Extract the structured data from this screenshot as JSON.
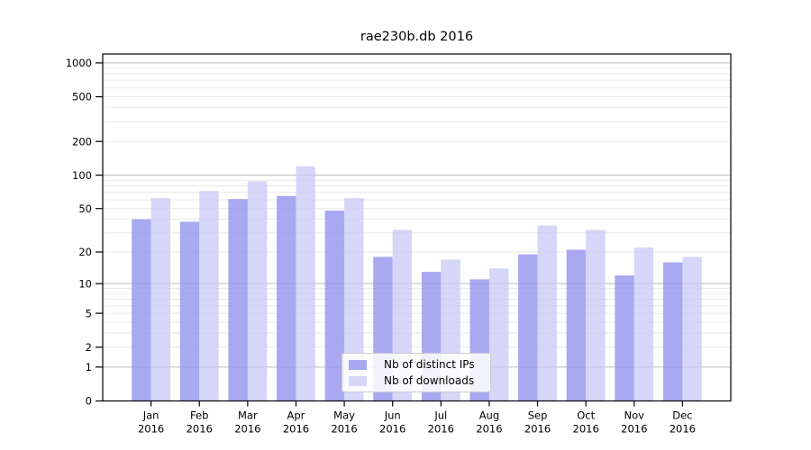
{
  "chart_data": {
    "type": "bar",
    "title": "rae230b.db 2016",
    "categories": [
      "Jan",
      "Feb",
      "Mar",
      "Apr",
      "May",
      "Jun",
      "Jul",
      "Aug",
      "Sep",
      "Oct",
      "Nov",
      "Dec"
    ],
    "category_year": "2016",
    "series": [
      {
        "name": "Nb of distinct IPs",
        "color": "#9494EECC",
        "values": [
          40,
          38,
          61,
          65,
          48,
          18,
          13,
          11,
          19,
          21,
          12,
          16
        ]
      },
      {
        "name": "Nb of downloads",
        "color": "#C8C8F6BF",
        "values": [
          62,
          72,
          88,
          120,
          62,
          32,
          17,
          14,
          35,
          32,
          22,
          18
        ]
      }
    ],
    "yscale": "log1p",
    "yticks": [
      0,
      1,
      2,
      5,
      10,
      20,
      50,
      100,
      200,
      500,
      1000
    ],
    "ylim": [
      0,
      1200
    ],
    "grid": true,
    "legend_position": "lower-center",
    "bar_group_width_fraction": 0.8
  },
  "colors": {
    "background": "#ffffff",
    "axis": "#000000",
    "grid_major": "#bcbcbc",
    "grid_minor": "#e8e8e8",
    "text": "#000000",
    "legend_border": "#cccccc"
  }
}
